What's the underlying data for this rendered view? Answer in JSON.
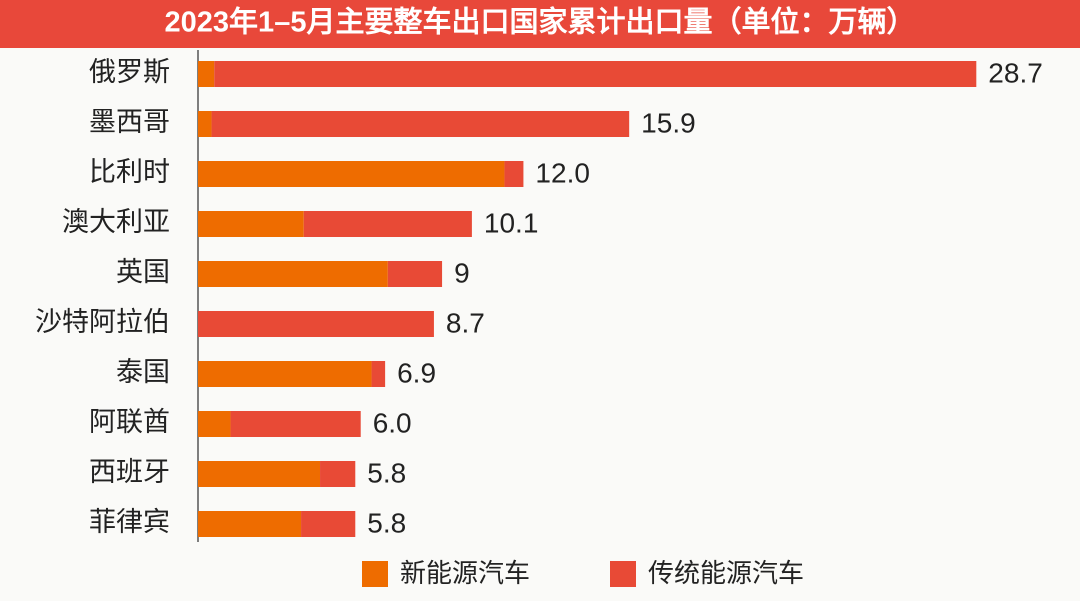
{
  "chart_data": {
    "type": "stacked-bar-horizontal",
    "title": "2023年1–5月主要整车出口国家累计出口量（单位：万辆）",
    "categories": [
      "俄罗斯",
      "墨西哥",
      "比利时",
      "澳大利亚",
      "英国",
      "沙特阿拉伯",
      "泰国",
      "阿联酋",
      "西班牙",
      "菲律宾"
    ],
    "series": [
      {
        "name": "新能源汽车",
        "color": "#ee6c00",
        "values": [
          0.6,
          0.5,
          11.3,
          3.9,
          7.0,
          0,
          6.4,
          1.2,
          4.5,
          3.8
        ]
      },
      {
        "name": "传统能源汽车",
        "color": "#e84a36",
        "values": [
          28.1,
          15.4,
          0.7,
          6.2,
          2.0,
          8.7,
          0.5,
          4.8,
          1.3,
          2.0
        ]
      }
    ],
    "totals": [
      28.7,
      15.9,
      12.0,
      10.1,
      9,
      8.7,
      6.9,
      6.0,
      5.8,
      5.8
    ],
    "total_labels": [
      "28.7",
      "15.9",
      "12.0",
      "10.1",
      "9",
      "8.7",
      "6.9",
      "6.0",
      "5.8",
      "5.8"
    ],
    "xlim": [
      0,
      29.5
    ]
  }
}
